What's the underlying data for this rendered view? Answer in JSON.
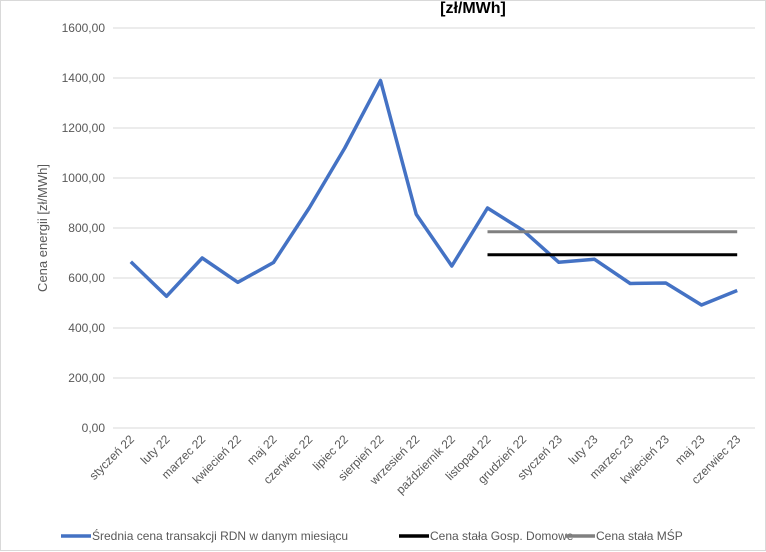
{
  "chart_data": {
    "type": "line",
    "title": "[zł/MWh]",
    "ylabel": "Cena energii [zł/MWh]",
    "xlabel": "",
    "ylim": [
      0,
      1600
    ],
    "y_ticks": [
      "0,00",
      "200,00",
      "400,00",
      "600,00",
      "800,00",
      "1000,00",
      "1200,00",
      "1400,00",
      "1600,00"
    ],
    "y_tick_values": [
      0,
      200,
      400,
      600,
      800,
      1000,
      1200,
      1400,
      1600
    ],
    "categories": [
      "styczeń 22",
      "luty 22",
      "marzec 22",
      "kwiecień 22",
      "maj 22",
      "czerwiec 22",
      "lipiec 22",
      "sierpień 22",
      "wrzesień 22",
      "październik 22",
      "listopad 22",
      "grudzień 22",
      "styczeń 23",
      "luty 23",
      "marzec 23",
      "kwiecień 23",
      "maj 23",
      "czerwiec 23"
    ],
    "grid": true,
    "legend_position": "bottom",
    "series": [
      {
        "name": "Średnia cena transakcji RDN w danym miesiącu",
        "color": "#4472c4",
        "values": [
          665,
          527,
          680,
          583,
          662,
          880,
          1120,
          1390,
          855,
          648,
          880,
          790,
          663,
          675,
          578,
          580,
          492,
          550
        ]
      },
      {
        "name": "Cena stała Gosp. Domowe",
        "color": "#000000",
        "values": [
          null,
          null,
          null,
          null,
          null,
          null,
          null,
          null,
          null,
          null,
          693,
          693,
          693,
          693,
          693,
          693,
          693,
          693
        ]
      },
      {
        "name": "Cena stała MŚP",
        "color": "#808080",
        "values": [
          null,
          null,
          null,
          null,
          null,
          null,
          null,
          null,
          null,
          null,
          785,
          785,
          785,
          785,
          785,
          785,
          785,
          785
        ]
      }
    ]
  }
}
